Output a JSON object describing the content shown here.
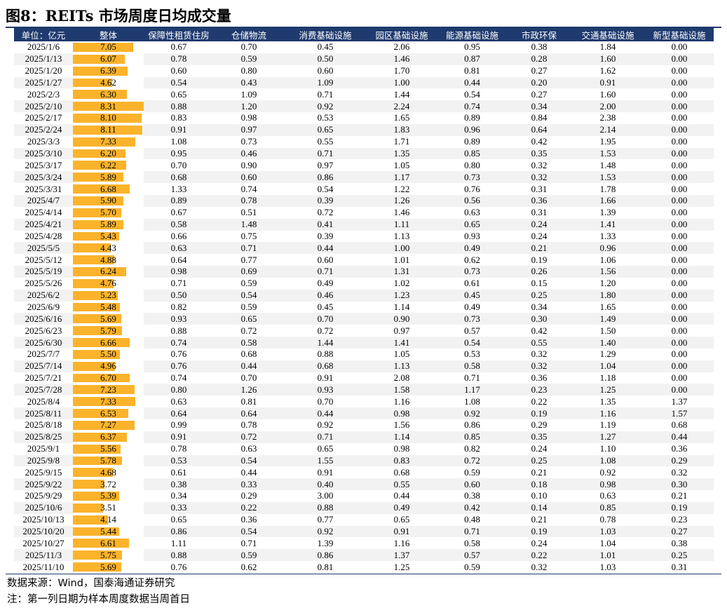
{
  "title": "图8：REITs 市场周度日均成交量",
  "headers": [
    "单位：亿元",
    "整体",
    "保障性租赁住房",
    "仓储物流",
    "消费基础设施",
    "园区基础设施",
    "能源基础设施",
    "市政环保",
    "交通基础设施",
    "新型基础设施"
  ],
  "bar_max": 8.31,
  "colors": {
    "header_bg": "#1f3a6e",
    "bar": "#fbb32b",
    "stripe": "#f2f2f2"
  },
  "rows": [
    [
      "2025/1/6",
      "7.05",
      "0.67",
      "0.70",
      "0.45",
      "2.06",
      "0.95",
      "0.38",
      "1.84",
      "0.00"
    ],
    [
      "2025/1/13",
      "6.07",
      "0.78",
      "0.59",
      "0.50",
      "1.46",
      "0.87",
      "0.28",
      "1.60",
      "0.00"
    ],
    [
      "2025/1/20",
      "6.39",
      "0.60",
      "0.80",
      "0.60",
      "1.70",
      "0.81",
      "0.27",
      "1.62",
      "0.00"
    ],
    [
      "2025/1/27",
      "4.62",
      "0.54",
      "0.43",
      "1.09",
      "1.00",
      "0.44",
      "0.20",
      "0.91",
      "0.00"
    ],
    [
      "2025/2/3",
      "6.30",
      "0.65",
      "1.09",
      "0.71",
      "1.44",
      "0.54",
      "0.27",
      "1.60",
      "0.00"
    ],
    [
      "2025/2/10",
      "8.31",
      "0.88",
      "1.20",
      "0.92",
      "2.24",
      "0.74",
      "0.34",
      "2.00",
      "0.00"
    ],
    [
      "2025/2/17",
      "8.10",
      "0.83",
      "0.98",
      "0.53",
      "1.65",
      "0.89",
      "0.84",
      "2.38",
      "0.00"
    ],
    [
      "2025/2/24",
      "8.11",
      "0.91",
      "0.97",
      "0.65",
      "1.83",
      "0.96",
      "0.64",
      "2.14",
      "0.00"
    ],
    [
      "2025/3/3",
      "7.33",
      "1.08",
      "0.73",
      "0.55",
      "1.71",
      "0.89",
      "0.42",
      "1.95",
      "0.00"
    ],
    [
      "2025/3/10",
      "6.20",
      "0.95",
      "0.46",
      "0.71",
      "1.35",
      "0.85",
      "0.35",
      "1.53",
      "0.00"
    ],
    [
      "2025/3/17",
      "6.22",
      "0.70",
      "0.90",
      "0.97",
      "1.05",
      "0.80",
      "0.32",
      "1.48",
      "0.00"
    ],
    [
      "2025/3/24",
      "5.89",
      "0.68",
      "0.60",
      "0.86",
      "1.17",
      "0.73",
      "0.32",
      "1.53",
      "0.00"
    ],
    [
      "2025/3/31",
      "6.68",
      "1.33",
      "0.74",
      "0.54",
      "1.22",
      "0.76",
      "0.31",
      "1.78",
      "0.00"
    ],
    [
      "2025/4/7",
      "5.90",
      "0.89",
      "0.78",
      "0.39",
      "1.26",
      "0.56",
      "0.36",
      "1.66",
      "0.00"
    ],
    [
      "2025/4/14",
      "5.70",
      "0.67",
      "0.51",
      "0.72",
      "1.46",
      "0.63",
      "0.31",
      "1.39",
      "0.00"
    ],
    [
      "2025/4/21",
      "5.89",
      "0.58",
      "1.48",
      "0.41",
      "1.11",
      "0.65",
      "0.24",
      "1.41",
      "0.00"
    ],
    [
      "2025/4/28",
      "5.43",
      "0.66",
      "0.75",
      "0.39",
      "1.13",
      "0.93",
      "0.24",
      "1.33",
      "0.00"
    ],
    [
      "2025/5/5",
      "4.43",
      "0.63",
      "0.71",
      "0.44",
      "1.00",
      "0.49",
      "0.21",
      "0.96",
      "0.00"
    ],
    [
      "2025/5/12",
      "4.88",
      "0.64",
      "0.77",
      "0.60",
      "1.01",
      "0.62",
      "0.19",
      "1.06",
      "0.00"
    ],
    [
      "2025/5/19",
      "6.24",
      "0.98",
      "0.69",
      "0.71",
      "1.31",
      "0.73",
      "0.26",
      "1.56",
      "0.00"
    ],
    [
      "2025/5/26",
      "4.76",
      "0.71",
      "0.59",
      "0.49",
      "1.02",
      "0.61",
      "0.15",
      "1.20",
      "0.00"
    ],
    [
      "2025/6/2",
      "5.23",
      "0.50",
      "0.54",
      "0.46",
      "1.23",
      "0.45",
      "0.25",
      "1.80",
      "0.00"
    ],
    [
      "2025/6/9",
      "5.48",
      "0.82",
      "0.59",
      "0.45",
      "1.14",
      "0.49",
      "0.34",
      "1.65",
      "0.00"
    ],
    [
      "2025/6/16",
      "5.69",
      "0.93",
      "0.65",
      "0.70",
      "0.90",
      "0.73",
      "0.30",
      "1.49",
      "0.00"
    ],
    [
      "2025/6/23",
      "5.79",
      "0.88",
      "0.72",
      "0.72",
      "0.97",
      "0.57",
      "0.42",
      "1.50",
      "0.00"
    ],
    [
      "2025/6/30",
      "6.66",
      "0.74",
      "0.58",
      "1.44",
      "1.41",
      "0.54",
      "0.55",
      "1.40",
      "0.00"
    ],
    [
      "2025/7/7",
      "5.50",
      "0.76",
      "0.68",
      "0.88",
      "1.05",
      "0.53",
      "0.32",
      "1.29",
      "0.00"
    ],
    [
      "2025/7/14",
      "4.96",
      "0.76",
      "0.44",
      "0.68",
      "1.13",
      "0.58",
      "0.32",
      "1.04",
      "0.00"
    ],
    [
      "2025/7/21",
      "6.70",
      "0.74",
      "0.70",
      "0.91",
      "2.08",
      "0.71",
      "0.36",
      "1.18",
      "0.00"
    ],
    [
      "2025/7/28",
      "7.23",
      "0.80",
      "1.26",
      "0.93",
      "1.58",
      "1.17",
      "0.23",
      "1.25",
      "0.00"
    ],
    [
      "2025/8/4",
      "7.33",
      "0.63",
      "0.81",
      "0.70",
      "1.16",
      "1.08",
      "0.22",
      "1.35",
      "1.37"
    ],
    [
      "2025/8/11",
      "6.53",
      "0.64",
      "0.64",
      "0.44",
      "0.98",
      "0.92",
      "0.19",
      "1.16",
      "1.57"
    ],
    [
      "2025/8/18",
      "7.27",
      "0.99",
      "0.78",
      "0.92",
      "1.56",
      "0.86",
      "0.29",
      "1.19",
      "0.68"
    ],
    [
      "2025/8/25",
      "6.37",
      "0.91",
      "0.72",
      "0.71",
      "1.14",
      "0.85",
      "0.35",
      "1.27",
      "0.44"
    ],
    [
      "2025/9/1",
      "5.56",
      "0.78",
      "0.63",
      "0.65",
      "0.98",
      "0.82",
      "0.24",
      "1.10",
      "0.36"
    ],
    [
      "2025/9/8",
      "5.78",
      "0.53",
      "0.54",
      "1.55",
      "0.83",
      "0.72",
      "0.25",
      "1.08",
      "0.29"
    ],
    [
      "2025/9/15",
      "4.68",
      "0.61",
      "0.44",
      "0.91",
      "0.68",
      "0.59",
      "0.21",
      "0.92",
      "0.32"
    ],
    [
      "2025/9/22",
      "3.72",
      "0.38",
      "0.33",
      "0.40",
      "0.55",
      "0.60",
      "0.18",
      "0.98",
      "0.30"
    ],
    [
      "2025/9/29",
      "5.39",
      "0.34",
      "0.29",
      "3.00",
      "0.44",
      "0.38",
      "0.10",
      "0.63",
      "0.21"
    ],
    [
      "2025/10/6",
      "3.51",
      "0.33",
      "0.22",
      "0.88",
      "0.49",
      "0.42",
      "0.14",
      "0.85",
      "0.19"
    ],
    [
      "2025/10/13",
      "4.14",
      "0.65",
      "0.36",
      "0.77",
      "0.65",
      "0.48",
      "0.21",
      "0.78",
      "0.23"
    ],
    [
      "2025/10/20",
      "5.44",
      "0.86",
      "0.54",
      "0.92",
      "0.91",
      "0.71",
      "0.19",
      "1.03",
      "0.27"
    ],
    [
      "2025/10/27",
      "6.61",
      "1.11",
      "0.71",
      "1.39",
      "1.16",
      "0.58",
      "0.24",
      "1.04",
      "0.38"
    ],
    [
      "2025/11/3",
      "5.75",
      "0.88",
      "0.59",
      "0.86",
      "1.37",
      "0.57",
      "0.22",
      "1.01",
      "0.25"
    ],
    [
      "2025/11/10",
      "5.69",
      "0.76",
      "0.62",
      "0.81",
      "1.25",
      "0.59",
      "0.32",
      "1.03",
      "0.31"
    ]
  ],
  "source": "数据来源：Wind，国泰海通证券研究",
  "note": "注：第一列日期为样本周度数据当周首日"
}
